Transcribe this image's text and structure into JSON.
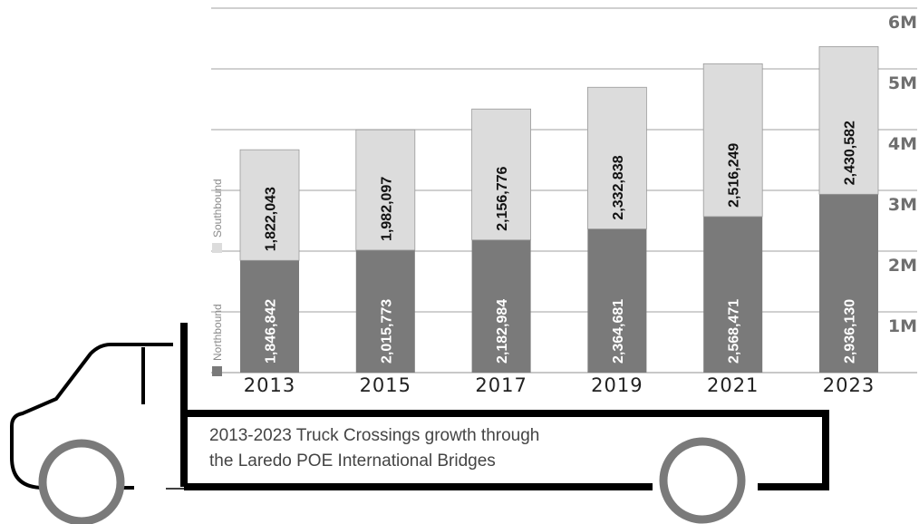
{
  "chart_data": {
    "type": "bar",
    "stacked": true,
    "orientation": "vertical",
    "categories": [
      "2013",
      "2015",
      "2017",
      "2019",
      "2021",
      "2023"
    ],
    "series": [
      {
        "name": "Northbound",
        "color": "#7a7a7a",
        "label_color": "#ffffff",
        "values": [
          1846842,
          2015773,
          2182984,
          2364681,
          2568471,
          2936130
        ],
        "labels": [
          "1,846,842",
          "2,015,773",
          "2,182,984",
          "2,364,681",
          "2,568,471",
          "2,936,130"
        ]
      },
      {
        "name": "Southbound",
        "color": "#dcdcdc",
        "label_color": "#111111",
        "values": [
          1822043,
          1982097,
          2156776,
          2332838,
          2516249,
          2430582
        ],
        "labels": [
          "1,822,043",
          "1,982,097",
          "2,156,776",
          "2,332,838",
          "2,516,249",
          "2,430,582"
        ]
      }
    ],
    "y_ticks": [
      {
        "value": 1000000,
        "label": "1M"
      },
      {
        "value": 2000000,
        "label": "2M"
      },
      {
        "value": 3000000,
        "label": "3M"
      },
      {
        "value": 4000000,
        "label": "4M"
      },
      {
        "value": 5000000,
        "label": "5M"
      },
      {
        "value": 6000000,
        "label": "6M"
      }
    ],
    "ylim": [
      0,
      6000000
    ],
    "y_axis_side": "right",
    "grid": true,
    "legend_placement": "left, vertical",
    "title": "2013-2023 Truck Crossings growth through the Laredo POE International Bridges",
    "title_lines": [
      "2013-2023 Truck Crossings growth through",
      "the Laredo POE International Bridges"
    ],
    "xlabel": "",
    "ylabel": ""
  },
  "colors": {
    "gridline": "#b5b5b5",
    "truck_outline": "#000000",
    "wheel": "#7a7a7a"
  }
}
